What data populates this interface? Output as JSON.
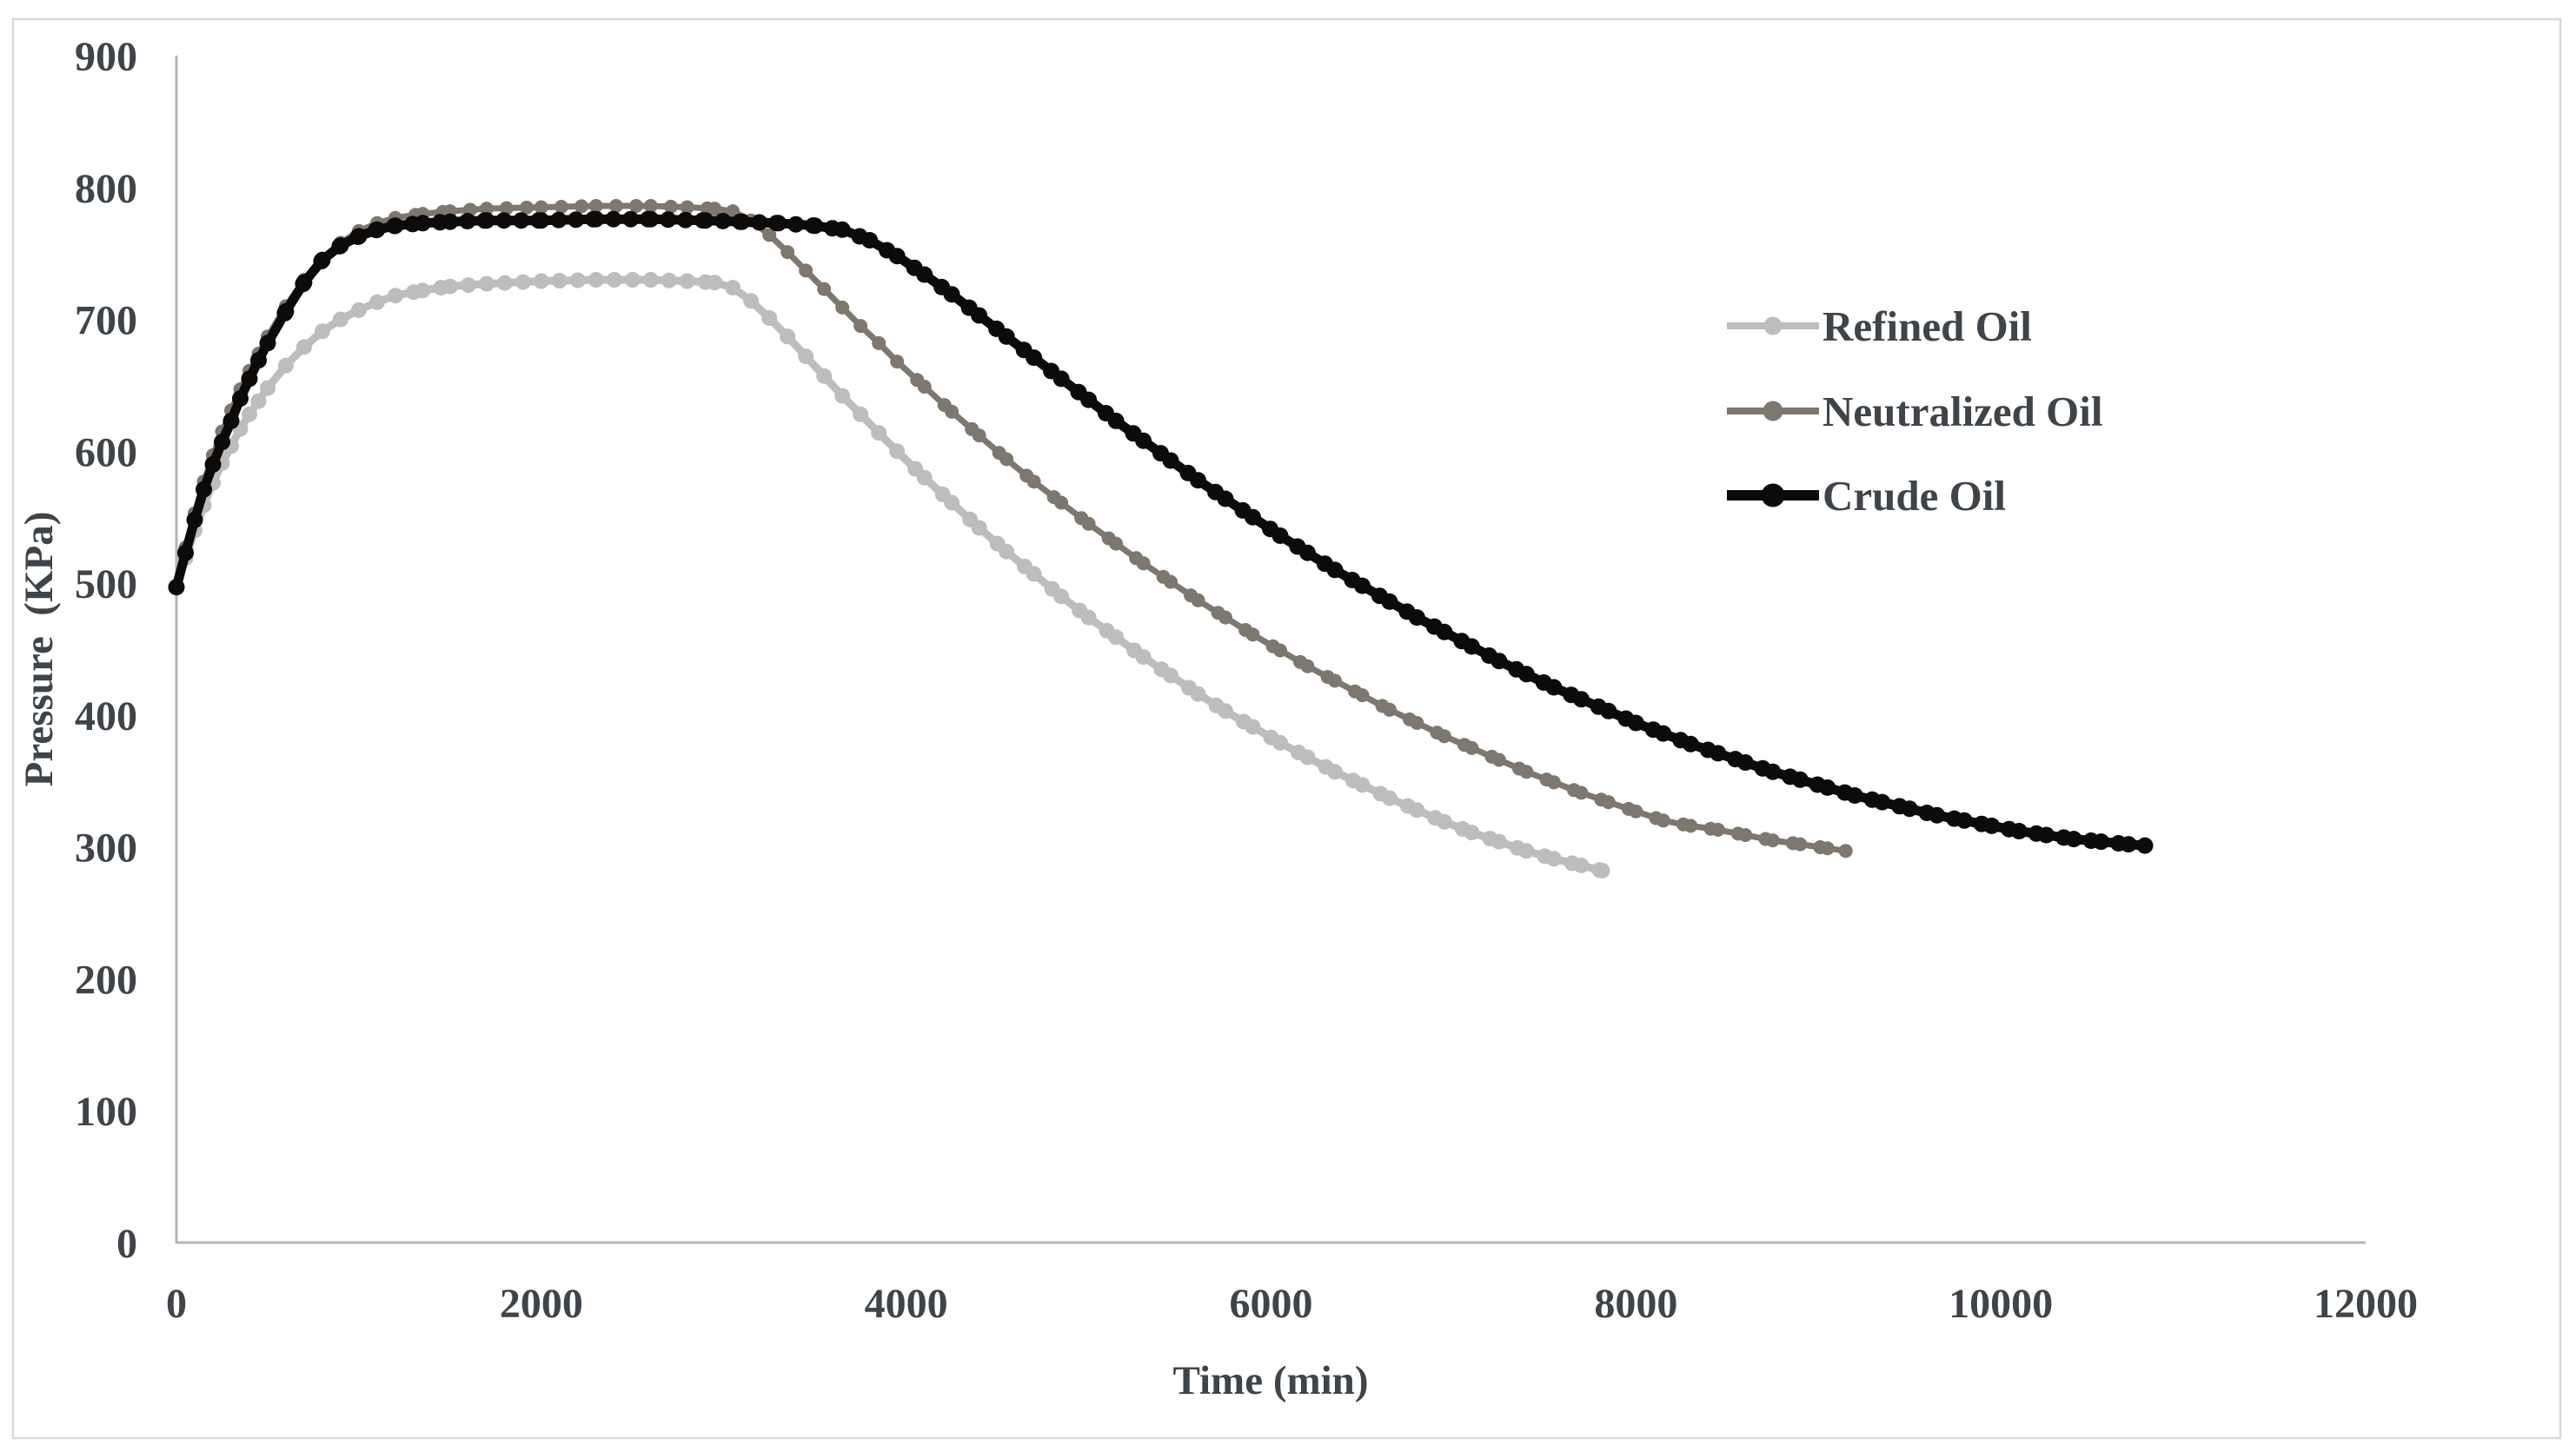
{
  "figure": {
    "kind": "scientific line chart",
    "background": "#ffffff",
    "border_color": "#d9d9d9",
    "axis_line_color": "#b5b5b5",
    "text_color": "#3f4449"
  },
  "chart_data": {
    "type": "line",
    "title": "",
    "xlabel": "Time (min)",
    "ylabel": "Pressure  (KPa)",
    "xlim": [
      0,
      12000
    ],
    "ylim": [
      0,
      900
    ],
    "x_ticks": [
      0,
      2000,
      4000,
      6000,
      8000,
      10000,
      12000
    ],
    "y_ticks": [
      0,
      100,
      200,
      300,
      400,
      500,
      600,
      700,
      800,
      900
    ],
    "grid": false,
    "legend_position": "right",
    "series": [
      {
        "name": "Refined Oil",
        "color": "#bdbdbd",
        "marker": "circle",
        "points": [
          [
            0,
            497
          ],
          [
            50,
            519
          ],
          [
            100,
            540
          ],
          [
            150,
            559
          ],
          [
            200,
            576
          ],
          [
            250,
            591
          ],
          [
            300,
            604
          ],
          [
            350,
            617
          ],
          [
            400,
            628
          ],
          [
            450,
            638
          ],
          [
            500,
            648
          ],
          [
            600,
            665
          ],
          [
            700,
            679
          ],
          [
            800,
            691
          ],
          [
            900,
            700
          ],
          [
            1000,
            707
          ],
          [
            1100,
            713
          ],
          [
            1200,
            718
          ],
          [
            1350,
            722
          ],
          [
            1500,
            725
          ],
          [
            1700,
            727
          ],
          [
            2000,
            729
          ],
          [
            2300,
            730
          ],
          [
            2600,
            730
          ],
          [
            2800,
            729
          ],
          [
            2950,
            728
          ],
          [
            3050,
            724
          ],
          [
            3150,
            714
          ],
          [
            3250,
            701
          ],
          [
            3350,
            687
          ],
          [
            3450,
            672
          ],
          [
            3550,
            657
          ],
          [
            3650,
            642
          ],
          [
            3750,
            628
          ],
          [
            3850,
            614
          ],
          [
            3950,
            600
          ],
          [
            4100,
            580
          ],
          [
            4250,
            561
          ],
          [
            4400,
            542
          ],
          [
            4550,
            524
          ],
          [
            4700,
            507
          ],
          [
            4850,
            490
          ],
          [
            5000,
            474
          ],
          [
            5150,
            459
          ],
          [
            5300,
            444
          ],
          [
            5450,
            430
          ],
          [
            5600,
            416
          ],
          [
            5750,
            403
          ],
          [
            5900,
            391
          ],
          [
            6050,
            379
          ],
          [
            6200,
            368
          ],
          [
            6350,
            357
          ],
          [
            6500,
            347
          ],
          [
            6650,
            337
          ],
          [
            6800,
            328
          ],
          [
            6950,
            319
          ],
          [
            7100,
            311
          ],
          [
            7250,
            304
          ],
          [
            7400,
            297
          ],
          [
            7550,
            291
          ],
          [
            7700,
            286
          ],
          [
            7815,
            282
          ]
        ]
      },
      {
        "name": "Neutralized Oil",
        "color": "#7d7770",
        "marker": "circle",
        "points": [
          [
            0,
            497
          ],
          [
            50,
            527
          ],
          [
            100,
            553
          ],
          [
            150,
            577
          ],
          [
            200,
            597
          ],
          [
            250,
            615
          ],
          [
            300,
            631
          ],
          [
            350,
            647
          ],
          [
            400,
            661
          ],
          [
            450,
            674
          ],
          [
            500,
            687
          ],
          [
            600,
            710
          ],
          [
            700,
            730
          ],
          [
            800,
            746
          ],
          [
            900,
            758
          ],
          [
            1000,
            767
          ],
          [
            1100,
            773
          ],
          [
            1200,
            777
          ],
          [
            1350,
            780
          ],
          [
            1500,
            782
          ],
          [
            1700,
            784
          ],
          [
            2000,
            785
          ],
          [
            2300,
            786
          ],
          [
            2600,
            786
          ],
          [
            2800,
            785
          ],
          [
            2950,
            784
          ],
          [
            3050,
            782
          ],
          [
            3150,
            775
          ],
          [
            3250,
            764
          ],
          [
            3350,
            751
          ],
          [
            3450,
            737
          ],
          [
            3550,
            723
          ],
          [
            3650,
            709
          ],
          [
            3750,
            695
          ],
          [
            3850,
            682
          ],
          [
            3950,
            668
          ],
          [
            4100,
            649
          ],
          [
            4250,
            630
          ],
          [
            4400,
            612
          ],
          [
            4550,
            594
          ],
          [
            4700,
            577
          ],
          [
            4850,
            561
          ],
          [
            5000,
            545
          ],
          [
            5150,
            530
          ],
          [
            5300,
            515
          ],
          [
            5450,
            501
          ],
          [
            5600,
            487
          ],
          [
            5750,
            474
          ],
          [
            5900,
            461
          ],
          [
            6050,
            449
          ],
          [
            6200,
            437
          ],
          [
            6350,
            426
          ],
          [
            6500,
            415
          ],
          [
            6650,
            404
          ],
          [
            6800,
            394
          ],
          [
            6950,
            384
          ],
          [
            7100,
            375
          ],
          [
            7250,
            366
          ],
          [
            7400,
            357
          ],
          [
            7550,
            349
          ],
          [
            7700,
            341
          ],
          [
            7850,
            334
          ],
          [
            8000,
            327
          ],
          [
            8150,
            320
          ],
          [
            8300,
            316
          ],
          [
            8450,
            313
          ],
          [
            8600,
            309
          ],
          [
            8750,
            305
          ],
          [
            8900,
            302
          ],
          [
            9050,
            299
          ],
          [
            9150,
            297
          ]
        ]
      },
      {
        "name": "Crude Oil",
        "color": "#0c0b09",
        "marker": "circle",
        "points": [
          [
            0,
            497
          ],
          [
            50,
            523
          ],
          [
            100,
            548
          ],
          [
            150,
            571
          ],
          [
            200,
            590
          ],
          [
            250,
            607
          ],
          [
            300,
            623
          ],
          [
            350,
            640
          ],
          [
            400,
            655
          ],
          [
            450,
            669
          ],
          [
            500,
            682
          ],
          [
            600,
            706
          ],
          [
            700,
            728
          ],
          [
            800,
            745
          ],
          [
            900,
            756
          ],
          [
            1000,
            763
          ],
          [
            1100,
            768
          ],
          [
            1200,
            771
          ],
          [
            1350,
            773
          ],
          [
            1500,
            774
          ],
          [
            1700,
            775
          ],
          [
            2000,
            775
          ],
          [
            2300,
            776
          ],
          [
            2600,
            776
          ],
          [
            2900,
            775
          ],
          [
            3100,
            774
          ],
          [
            3300,
            773
          ],
          [
            3500,
            771
          ],
          [
            3650,
            768
          ],
          [
            3800,
            760
          ],
          [
            3950,
            748
          ],
          [
            4100,
            734
          ],
          [
            4250,
            719
          ],
          [
            4400,
            703
          ],
          [
            4550,
            687
          ],
          [
            4700,
            671
          ],
          [
            4850,
            655
          ],
          [
            5000,
            639
          ],
          [
            5150,
            623
          ],
          [
            5300,
            608
          ],
          [
            5450,
            593
          ],
          [
            5600,
            578
          ],
          [
            5750,
            564
          ],
          [
            5900,
            550
          ],
          [
            6050,
            536
          ],
          [
            6200,
            523
          ],
          [
            6350,
            510
          ],
          [
            6500,
            498
          ],
          [
            6650,
            486
          ],
          [
            6800,
            474
          ],
          [
            6950,
            463
          ],
          [
            7100,
            452
          ],
          [
            7250,
            441
          ],
          [
            7400,
            431
          ],
          [
            7550,
            421
          ],
          [
            7700,
            412
          ],
          [
            7850,
            403
          ],
          [
            8000,
            394
          ],
          [
            8150,
            386
          ],
          [
            8300,
            378
          ],
          [
            8450,
            371
          ],
          [
            8600,
            364
          ],
          [
            8750,
            357
          ],
          [
            8900,
            351
          ],
          [
            9050,
            345
          ],
          [
            9200,
            339
          ],
          [
            9350,
            334
          ],
          [
            9500,
            329
          ],
          [
            9650,
            324
          ],
          [
            9800,
            320
          ],
          [
            9950,
            316
          ],
          [
            10100,
            312
          ],
          [
            10250,
            309
          ],
          [
            10400,
            306
          ],
          [
            10550,
            304
          ],
          [
            10700,
            302
          ],
          [
            10790,
            301
          ]
        ]
      }
    ]
  }
}
